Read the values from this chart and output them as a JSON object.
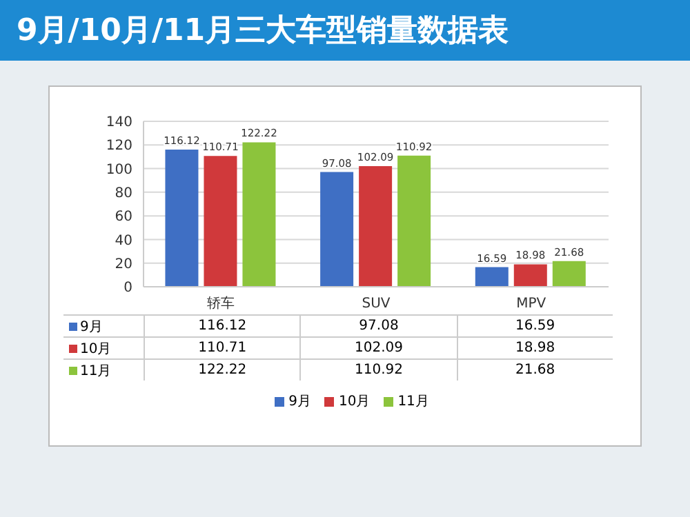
{
  "chart_data": {
    "type": "bar",
    "title": "9月/10月/11月三大车型销量数据表",
    "categories": [
      "轿车",
      "SUV",
      "MPV"
    ],
    "series": [
      {
        "name": "9月",
        "color": "#3f6fc4",
        "values": [
          116.12,
          97.08,
          16.59
        ],
        "value_labels": [
          "116.12",
          "97.08",
          "16.59"
        ]
      },
      {
        "name": "10月",
        "color": "#d0393b",
        "values": [
          110.71,
          102.09,
          18.98
        ],
        "value_labels": [
          "110.71",
          "102.09",
          "18.98"
        ]
      },
      {
        "name": "11月",
        "color": "#8cc43c",
        "values": [
          122.22,
          110.92,
          21.68
        ],
        "value_labels": [
          "122.22",
          "110.92",
          "21.68"
        ]
      }
    ],
    "annotations": [
      "116.12",
      "97.08",
      "16.59",
      "110.71",
      "102.09",
      "18.98",
      "122.22",
      "110.92",
      "21.68"
    ],
    "ylim": [
      0,
      140
    ],
    "yticks": [
      0,
      20,
      40,
      60,
      80,
      100,
      120,
      140
    ],
    "grid": "y",
    "data_labels": true,
    "legend": "bottom"
  }
}
